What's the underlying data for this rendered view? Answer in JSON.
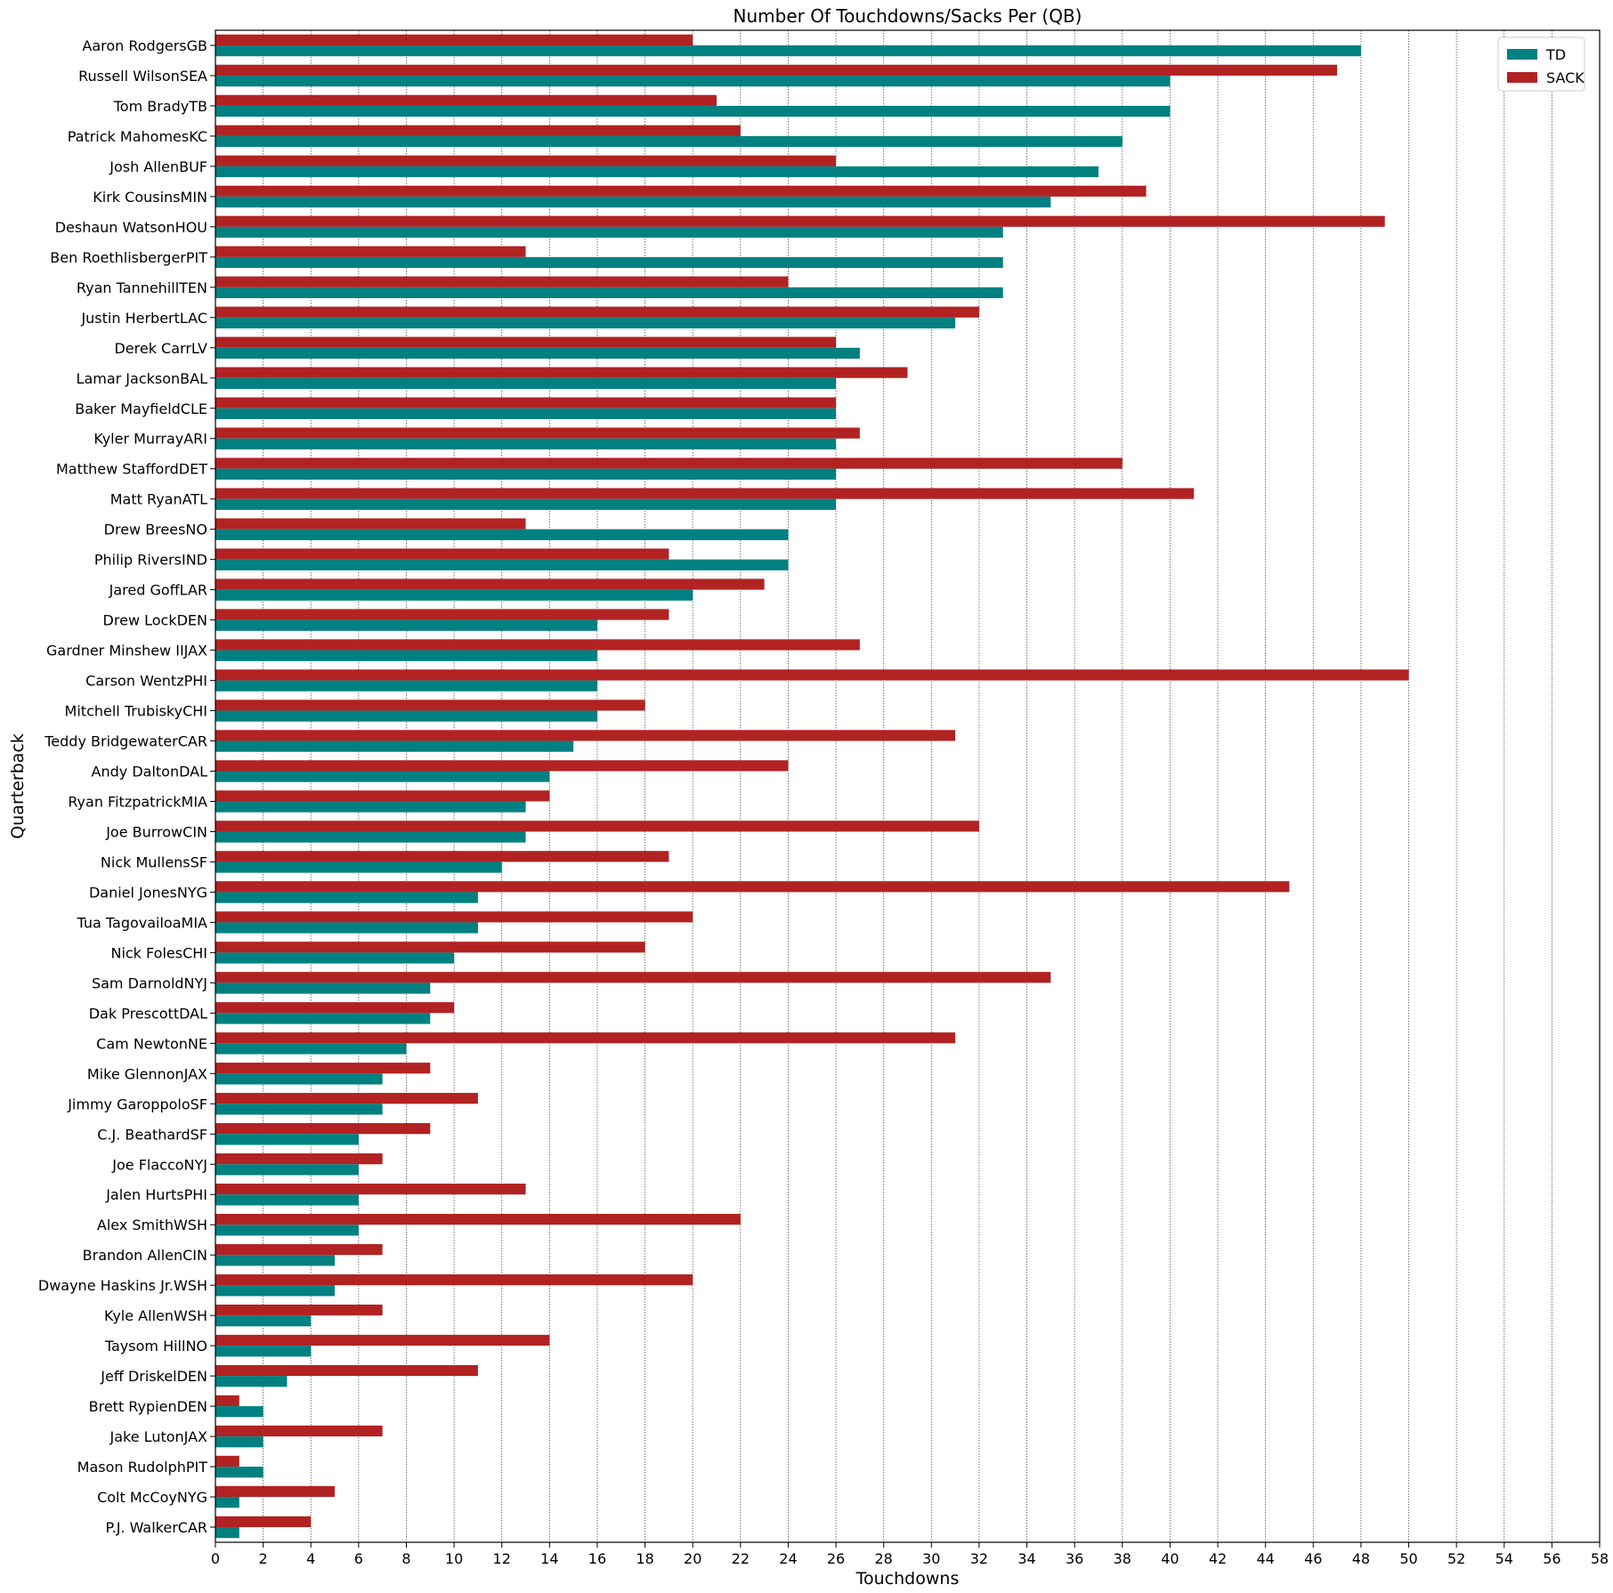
{
  "chart_data": {
    "type": "bar",
    "orientation": "horizontal",
    "title": "Number Of Touchdowns/Sacks Per (QB)",
    "xlabel": "Touchdowns",
    "ylabel": "Quarterback",
    "xlim": [
      0,
      58
    ],
    "xtick_step": 2,
    "grid": "vertical dotted",
    "legend_position": "top-right",
    "categories": [
      "Aaron RodgersGB",
      "Russell WilsonSEA",
      "Tom BradyTB",
      "Patrick MahomesKC",
      "Josh AllenBUF",
      "Kirk CousinsMIN",
      "Deshaun WatsonHOU",
      "Ben RoethlisbergerPIT",
      "Ryan TannehillTEN",
      "Justin HerbertLAC",
      "Derek CarrLV",
      "Lamar JacksonBAL",
      "Baker MayfieldCLE",
      "Kyler MurrayARI",
      "Matthew StaffordDET",
      "Matt RyanATL",
      "Drew BreesNO",
      "Philip RiversIND",
      "Jared GoffLAR",
      "Drew LockDEN",
      "Gardner Minshew IIJAX",
      "Carson WentzPHI",
      "Mitchell TrubiskyCHI",
      "Teddy BridgewaterCAR",
      "Andy DaltonDAL",
      "Ryan FitzpatrickMIA",
      "Joe BurrowCIN",
      "Nick MullensSF",
      "Daniel JonesNYG",
      "Tua TagovailoaMIA",
      "Nick FolesCHI",
      "Sam DarnoldNYJ",
      "Dak PrescottDAL",
      "Cam NewtonNE",
      "Mike GlennonJAX",
      "Jimmy GaroppoloSF",
      "C.J. BeathardSF",
      "Joe FlaccoNYJ",
      "Jalen HurtsPHI",
      "Alex SmithWSH",
      "Brandon AllenCIN",
      "Dwayne Haskins Jr.WSH",
      "Kyle AllenWSH",
      "Taysom HillNO",
      "Jeff DriskelDEN",
      "Brett RypienDEN",
      "Jake LutonJAX",
      "Mason RudolphPIT",
      "Colt McCoyNYG",
      "P.J. WalkerCAR"
    ],
    "series": [
      {
        "name": "TD",
        "color": "#008080",
        "values": [
          48,
          40,
          40,
          38,
          37,
          35,
          33,
          33,
          33,
          31,
          27,
          26,
          26,
          26,
          26,
          26,
          24,
          24,
          20,
          16,
          16,
          16,
          16,
          15,
          14,
          13,
          13,
          12,
          11,
          11,
          10,
          9,
          9,
          8,
          7,
          7,
          6,
          6,
          6,
          6,
          5,
          5,
          4,
          4,
          3,
          2,
          2,
          2,
          1,
          1
        ]
      },
      {
        "name": "SACK",
        "color": "#b22222",
        "values": [
          20,
          47,
          21,
          22,
          26,
          39,
          49,
          13,
          24,
          32,
          26,
          29,
          26,
          27,
          38,
          41,
          13,
          19,
          23,
          19,
          27,
          50,
          18,
          31,
          24,
          14,
          32,
          19,
          45,
          20,
          18,
          35,
          10,
          31,
          9,
          11,
          9,
          7,
          13,
          22,
          7,
          20,
          7,
          14,
          11,
          1,
          7,
          1,
          5,
          4
        ]
      }
    ]
  }
}
